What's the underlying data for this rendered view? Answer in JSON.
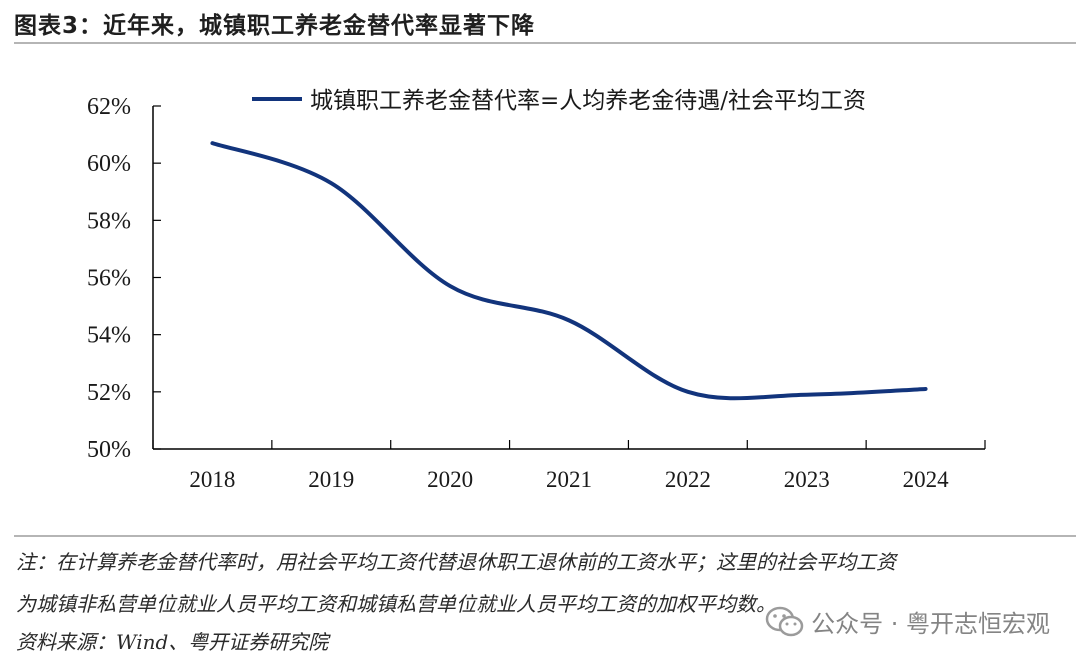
{
  "header": {
    "title": "图表3：近年来，城镇职工养老金替代率显著下降"
  },
  "footer": {
    "note_line1": "注：在计算养老金替代率时，用社会平均工资代替退休职工退休前的工资水平；这里的社会平均工资",
    "note_line2": "为城镇非私营单位就业人员平均工资和城镇私营单位就业人员平均工资的加权平均数。",
    "source": "资料来源：Wind、粤开证券研究院"
  },
  "watermark": {
    "text": "公众号 · 粤开志恒宏观",
    "icon": "wechat-icon"
  },
  "colors": {
    "series": "#12347c",
    "axis": "#000000"
  },
  "chart_data": {
    "type": "line",
    "title": "",
    "xlabel": "",
    "ylabel": "",
    "categories": [
      "2018",
      "2019",
      "2020",
      "2021",
      "2022",
      "2023",
      "2024"
    ],
    "x": [
      2018,
      2019,
      2020,
      2021,
      2022,
      2023,
      2024
    ],
    "ylim": [
      50,
      62
    ],
    "yticks": [
      "50%",
      "52%",
      "54%",
      "56%",
      "58%",
      "60%",
      "62%"
    ],
    "grid": false,
    "legend": "top",
    "series": [
      {
        "name": "城镇职工养老金替代率=人均养老金待遇/社会平均工资",
        "values": [
          60.7,
          59.3,
          55.7,
          54.5,
          52.0,
          51.9,
          52.1
        ]
      }
    ]
  }
}
